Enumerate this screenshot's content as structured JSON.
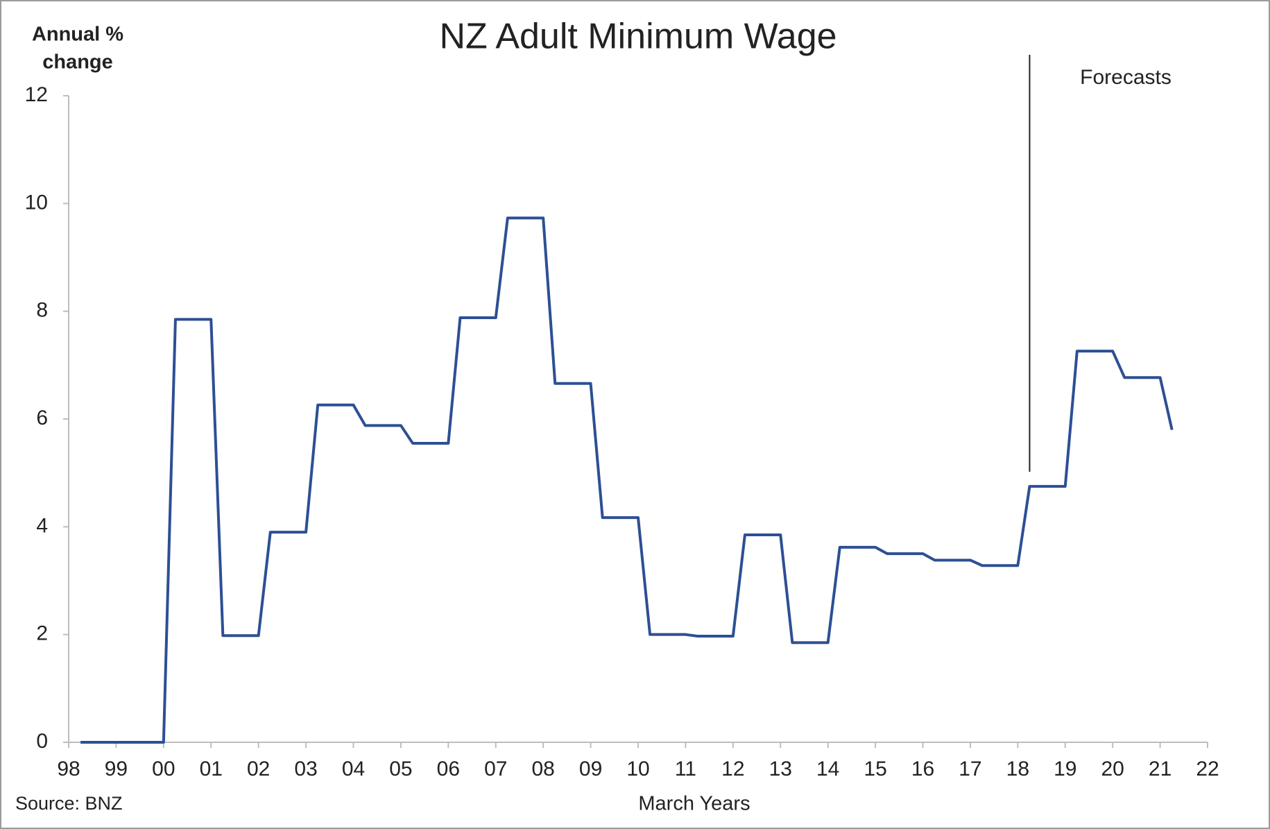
{
  "chart_data": {
    "type": "line",
    "title": "NZ Adult Minimum Wage",
    "ylabel_lines": [
      "Annual %",
      "change"
    ],
    "xlabel": "March Years",
    "source": "Source: BNZ",
    "annotation": "Forecasts",
    "forecast_start": 2018.25,
    "color": "#2d4f94",
    "x": [
      1998.25,
      1998.5,
      1998.75,
      1999,
      1999.25,
      1999.5,
      1999.75,
      2000,
      2000.25,
      2000.5,
      2000.75,
      2001,
      2001.25,
      2001.5,
      2001.75,
      2002,
      2002.25,
      2002.5,
      2002.75,
      2003,
      2003.25,
      2003.5,
      2003.75,
      2004,
      2004.25,
      2004.5,
      2004.75,
      2005,
      2005.25,
      2005.5,
      2005.75,
      2006,
      2006.25,
      2006.5,
      2006.75,
      2007,
      2007.25,
      2007.5,
      2007.75,
      2008,
      2008.25,
      2008.5,
      2008.75,
      2009,
      2009.25,
      2009.5,
      2009.75,
      2010,
      2010.25,
      2010.5,
      2010.75,
      2011,
      2011.25,
      2011.5,
      2011.75,
      2012,
      2012.25,
      2012.5,
      2012.75,
      2013,
      2013.25,
      2013.5,
      2013.75,
      2014,
      2014.25,
      2014.5,
      2014.75,
      2015,
      2015.25,
      2015.5,
      2015.75,
      2016,
      2016.25,
      2016.5,
      2016.75,
      2017,
      2017.25,
      2017.5,
      2017.75,
      2018,
      2018.25,
      2018.5,
      2018.75,
      2019,
      2019.25,
      2019.5,
      2019.75,
      2020,
      2020.25,
      2020.5,
      2020.75,
      2021,
      2021.25
    ],
    "values": [
      0,
      0,
      0,
      0,
      0,
      0,
      0,
      0,
      7.85,
      7.85,
      7.85,
      7.85,
      1.98,
      1.98,
      1.98,
      1.98,
      3.9,
      3.9,
      3.9,
      3.9,
      6.26,
      6.26,
      6.26,
      6.26,
      5.88,
      5.88,
      5.88,
      5.88,
      5.55,
      5.55,
      5.55,
      5.55,
      7.88,
      7.88,
      7.88,
      7.88,
      9.73,
      9.73,
      9.73,
      9.73,
      6.66,
      6.66,
      6.66,
      6.66,
      4.17,
      4.17,
      4.17,
      4.17,
      2.0,
      2.0,
      2.0,
      2.0,
      1.97,
      1.97,
      1.97,
      1.97,
      3.85,
      3.85,
      3.85,
      3.85,
      1.85,
      1.85,
      1.85,
      1.85,
      3.62,
      3.62,
      3.62,
      3.62,
      3.5,
      3.5,
      3.5,
      3.5,
      3.38,
      3.38,
      3.38,
      3.38,
      3.28,
      3.28,
      3.28,
      3.28,
      4.75,
      4.75,
      4.75,
      4.75,
      7.26,
      7.26,
      7.26,
      7.26,
      6.77,
      6.77,
      6.77,
      6.77,
      5.8
    ],
    "xlim": [
      1998,
      2022
    ],
    "xticks": [
      {
        "value": 1998,
        "label": "98"
      },
      {
        "value": 1999,
        "label": "99"
      },
      {
        "value": 2000,
        "label": "00"
      },
      {
        "value": 2001,
        "label": "01"
      },
      {
        "value": 2002,
        "label": "02"
      },
      {
        "value": 2003,
        "label": "03"
      },
      {
        "value": 2004,
        "label": "04"
      },
      {
        "value": 2005,
        "label": "05"
      },
      {
        "value": 2006,
        "label": "06"
      },
      {
        "value": 2007,
        "label": "07"
      },
      {
        "value": 2008,
        "label": "08"
      },
      {
        "value": 2009,
        "label": "09"
      },
      {
        "value": 2010,
        "label": "10"
      },
      {
        "value": 2011,
        "label": "11"
      },
      {
        "value": 2012,
        "label": "12"
      },
      {
        "value": 2013,
        "label": "13"
      },
      {
        "value": 2014,
        "label": "14"
      },
      {
        "value": 2015,
        "label": "15"
      },
      {
        "value": 2016,
        "label": "16"
      },
      {
        "value": 2017,
        "label": "17"
      },
      {
        "value": 2018,
        "label": "18"
      },
      {
        "value": 2019,
        "label": "19"
      },
      {
        "value": 2020,
        "label": "20"
      },
      {
        "value": 2021,
        "label": "21"
      },
      {
        "value": 2022,
        "label": "22"
      }
    ],
    "ylim": [
      0,
      12
    ],
    "yticks": [
      0,
      2,
      4,
      6,
      8,
      10,
      12
    ],
    "grid": false
  }
}
